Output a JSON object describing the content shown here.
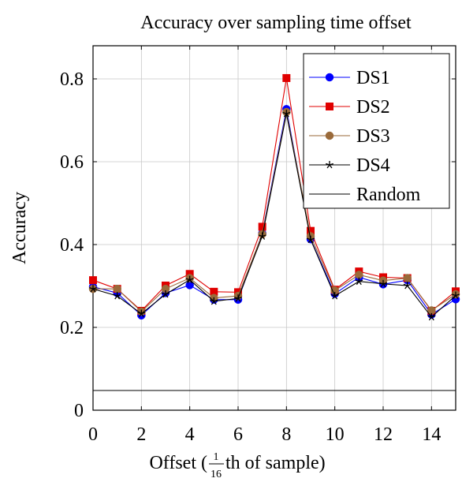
{
  "chart_data": {
    "type": "line",
    "title": "Accuracy over sampling time offset",
    "xlabel": {
      "prefix": "Offset (",
      "frac_num": "1",
      "frac_den": "16",
      "suffix": "th of sample)"
    },
    "ylabel": "Accuracy",
    "xlim": [
      0,
      15
    ],
    "ylim": [
      0,
      0.88
    ],
    "xticks": [
      0,
      2,
      4,
      6,
      8,
      10,
      12,
      14
    ],
    "xtick_labels": [
      "0",
      "2",
      "4",
      "6",
      "8",
      "10",
      "12",
      "14"
    ],
    "yticks": [
      0,
      0.2,
      0.4,
      0.6,
      0.8
    ],
    "ytick_labels": [
      "0",
      "0.2",
      "0.4",
      "0.6",
      "0.8"
    ],
    "grid": true,
    "legend_position": "top-right",
    "x": [
      0,
      1,
      2,
      3,
      4,
      5,
      6,
      7,
      8,
      9,
      10,
      11,
      12,
      13,
      14,
      15
    ],
    "series": [
      {
        "name": "DS1",
        "color": "#0000ff",
        "marker": "circle",
        "values": [
          0.298,
          0.283,
          0.229,
          0.283,
          0.302,
          0.267,
          0.267,
          0.427,
          0.727,
          0.413,
          0.281,
          0.321,
          0.304,
          0.314,
          0.231,
          0.268
        ]
      },
      {
        "name": "DS2",
        "color": "#e00000",
        "marker": "square",
        "values": [
          0.314,
          0.293,
          0.24,
          0.301,
          0.329,
          0.286,
          0.285,
          0.443,
          0.802,
          0.433,
          0.291,
          0.335,
          0.321,
          0.319,
          0.24,
          0.287
        ]
      },
      {
        "name": "DS3",
        "color": "#9a6a3a",
        "marker": "circle",
        "values": [
          0.293,
          0.293,
          0.238,
          0.293,
          0.319,
          0.271,
          0.276,
          0.425,
          0.72,
          0.42,
          0.289,
          0.327,
          0.313,
          0.319,
          0.241,
          0.28
        ]
      },
      {
        "name": "DS4",
        "color": "#000000",
        "marker": "star",
        "values": [
          0.293,
          0.276,
          0.233,
          0.28,
          0.315,
          0.263,
          0.27,
          0.42,
          0.716,
          0.412,
          0.276,
          0.311,
          0.305,
          0.301,
          0.225,
          0.277
        ]
      },
      {
        "name": "Random",
        "color": "#000000",
        "marker": "none",
        "values": [
          0.0476,
          0.0476,
          0.0476,
          0.0476,
          0.0476,
          0.0476,
          0.0476,
          0.0476,
          0.0476,
          0.0476,
          0.0476,
          0.0476,
          0.0476,
          0.0476,
          0.0476,
          0.0476
        ]
      }
    ]
  }
}
